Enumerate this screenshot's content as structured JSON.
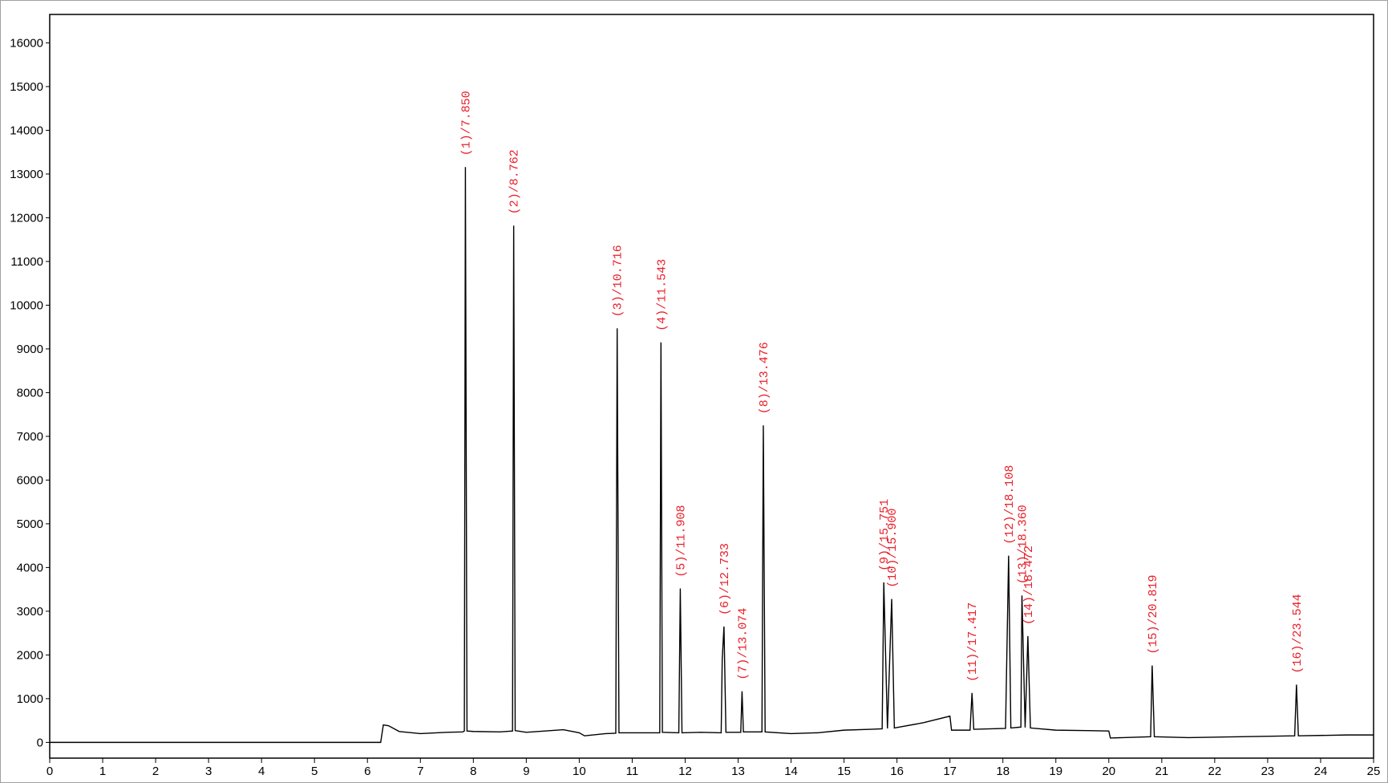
{
  "chart_data": {
    "type": "line",
    "color": "#000000",
    "label_color": "#e8202a",
    "xlim": [
      0,
      25
    ],
    "ylim": [
      -360,
      16650
    ],
    "xticks": [
      0,
      1,
      2,
      3,
      4,
      5,
      6,
      7,
      8,
      9,
      10,
      11,
      12,
      13,
      14,
      15,
      16,
      17,
      18,
      19,
      20,
      21,
      22,
      23,
      24,
      25
    ],
    "yticks": [
      0,
      1000,
      2000,
      3000,
      4000,
      5000,
      6000,
      7000,
      8000,
      9000,
      10000,
      11000,
      12000,
      13000,
      14000,
      15000,
      16000
    ],
    "x": [
      0,
      6.25,
      6.3,
      6.4,
      6.6,
      7.0,
      7.5,
      7.8,
      7.83,
      7.85,
      7.88,
      8.0,
      8.5,
      8.74,
      8.762,
      8.79,
      9.0,
      9.7,
      10.0,
      10.1,
      10.5,
      10.69,
      10.716,
      10.75,
      11.2,
      11.52,
      11.543,
      11.57,
      11.88,
      11.908,
      11.94,
      12.3,
      12.68,
      12.7,
      12.733,
      12.77,
      13.05,
      13.074,
      13.1,
      13.45,
      13.476,
      13.51,
      14.0,
      14.5,
      15.0,
      15.5,
      15.72,
      15.751,
      15.82,
      15.9,
      15.95,
      16.5,
      17.0,
      17.03,
      17.38,
      17.417,
      17.45,
      18.05,
      18.108,
      18.15,
      18.34,
      18.36,
      18.42,
      18.472,
      18.52,
      19.0,
      19.6,
      20.0,
      20.03,
      20.79,
      20.819,
      20.86,
      21.5,
      22.5,
      23.51,
      23.544,
      23.58,
      24.5,
      25
    ],
    "values": [
      0,
      0,
      400,
      380,
      250,
      200,
      230,
      240,
      260,
      13160,
      260,
      250,
      240,
      260,
      11820,
      270,
      230,
      290,
      220,
      150,
      200,
      210,
      9470,
      220,
      220,
      220,
      9150,
      230,
      220,
      3520,
      220,
      230,
      220,
      1900,
      2650,
      230,
      230,
      1170,
      240,
      240,
      7250,
      240,
      200,
      220,
      280,
      300,
      310,
      3660,
      320,
      3280,
      330,
      450,
      600,
      280,
      280,
      1130,
      300,
      320,
      4270,
      330,
      350,
      3360,
      340,
      2430,
      330,
      280,
      270,
      260,
      100,
      130,
      1760,
      130,
      110,
      130,
      150,
      1320,
      150,
      170,
      170
    ],
    "peaks": [
      {
        "label": "(1)/7.850",
        "x": 7.85,
        "height": 13160
      },
      {
        "label": "(2)/8.762",
        "x": 8.762,
        "height": 11820
      },
      {
        "label": "(3)/10.716",
        "x": 10.716,
        "height": 9470
      },
      {
        "label": "(4)/11.543",
        "x": 11.543,
        "height": 9150
      },
      {
        "label": "(5)/11.908",
        "x": 11.908,
        "height": 3520
      },
      {
        "label": "(6)/12.733",
        "x": 12.733,
        "height": 2650
      },
      {
        "label": "(7)/13.074",
        "x": 13.074,
        "height": 1170
      },
      {
        "label": "(8)/13.476",
        "x": 13.476,
        "height": 7250
      },
      {
        "label": "(9)/15.751",
        "x": 15.751,
        "height": 3660
      },
      {
        "label": "(10)/15.900",
        "x": 15.9,
        "height": 3280
      },
      {
        "label": "(11)/17.417",
        "x": 17.417,
        "height": 1130
      },
      {
        "label": "(12)/18.108",
        "x": 18.108,
        "height": 4270
      },
      {
        "label": "(13)/18.360",
        "x": 18.36,
        "height": 3360
      },
      {
        "label": "(14)/18.472",
        "x": 18.472,
        "height": 2430
      },
      {
        "label": "(15)/20.819",
        "x": 20.819,
        "height": 1760
      },
      {
        "label": "(16)/23.544",
        "x": 23.544,
        "height": 1320
      }
    ]
  }
}
